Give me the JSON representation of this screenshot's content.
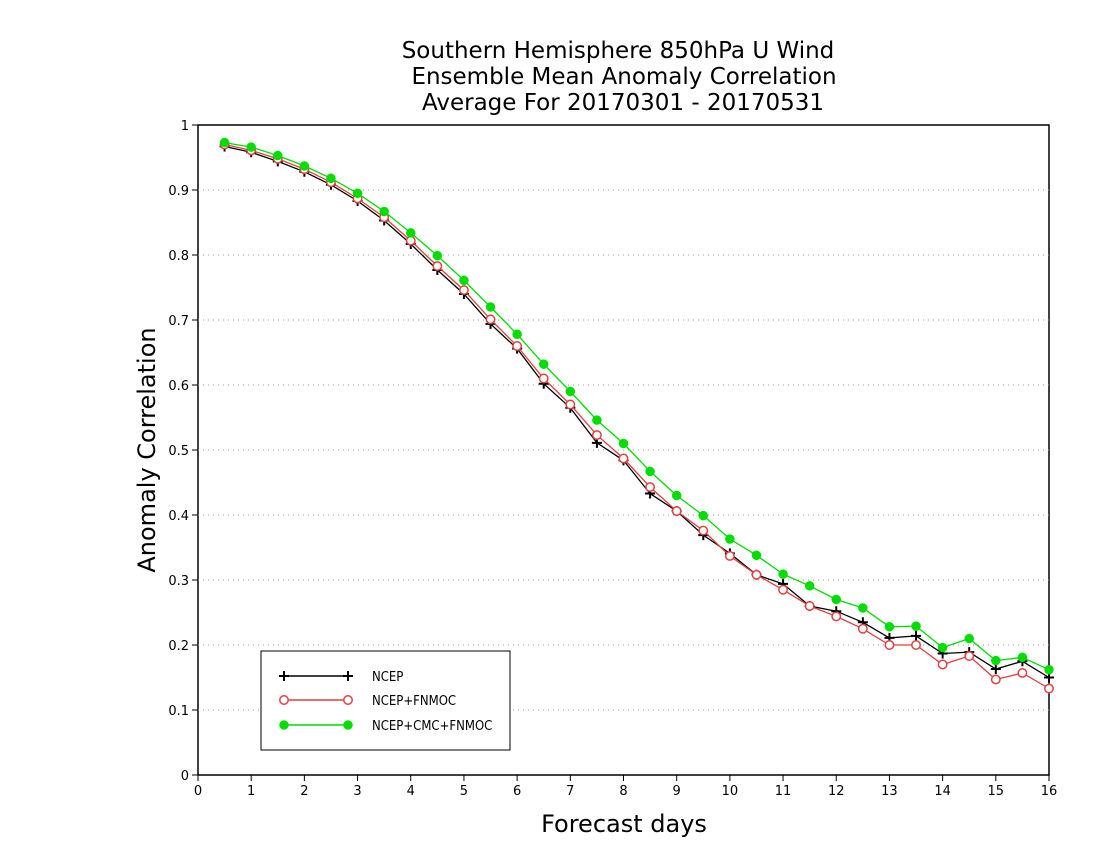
{
  "chart_data": {
    "type": "line",
    "title_lines": [
      "Southern Hemisphere 850hPa U Wind",
      "Ensemble Mean Anomaly Correlation",
      "Average For 20170301 - 20170531"
    ],
    "xlabel": "Forecast days",
    "ylabel": "Anomaly Correlation",
    "xlim": [
      0,
      16
    ],
    "ylim": [
      0,
      1
    ],
    "x_ticks": [
      "0",
      "1",
      "2",
      "3",
      "4",
      "5",
      "6",
      "7",
      "8",
      "9",
      "10",
      "11",
      "12",
      "13",
      "14",
      "15",
      "16"
    ],
    "y_ticks": [
      "0",
      "0.1",
      "0.2",
      "0.3",
      "0.4",
      "0.5",
      "0.6",
      "0.7",
      "0.8",
      "0.9",
      "1"
    ],
    "grid": "horizontal dotted",
    "legend_position": "bottom-left",
    "x": [
      0.5,
      1,
      1.5,
      2,
      2.5,
      3,
      3.5,
      4,
      4.5,
      5,
      5.5,
      6,
      6.5,
      7,
      7.5,
      8,
      8.5,
      9,
      9.5,
      10,
      10.5,
      11,
      11.5,
      12,
      12.5,
      13,
      13.5,
      14,
      14.5,
      15,
      15.5,
      16
    ],
    "series": [
      {
        "name": "NCEP",
        "color": "#000000",
        "marker": "plus",
        "values": [
          0.967,
          0.958,
          0.944,
          0.928,
          0.908,
          0.883,
          0.853,
          0.817,
          0.777,
          0.74,
          0.694,
          0.656,
          0.602,
          0.565,
          0.511,
          0.484,
          0.433,
          0.406,
          0.369,
          0.341,
          0.308,
          0.294,
          0.26,
          0.252,
          0.235,
          0.211,
          0.214,
          0.187,
          0.189,
          0.163,
          0.175,
          0.15
        ]
      },
      {
        "name": "NCEP+FNMOC",
        "color": "#e04040",
        "marker": "open-circle",
        "values": [
          0.97,
          0.961,
          0.948,
          0.932,
          0.912,
          0.887,
          0.858,
          0.822,
          0.783,
          0.746,
          0.701,
          0.66,
          0.61,
          0.57,
          0.523,
          0.487,
          0.443,
          0.406,
          0.376,
          0.337,
          0.308,
          0.285,
          0.26,
          0.244,
          0.225,
          0.2,
          0.2,
          0.17,
          0.183,
          0.147,
          0.157,
          0.133
        ]
      },
      {
        "name": "NCEP+CMC+FNMOC",
        "color": "#00dd00",
        "marker": "filled-circle",
        "values": [
          0.973,
          0.966,
          0.953,
          0.937,
          0.918,
          0.895,
          0.867,
          0.834,
          0.799,
          0.761,
          0.72,
          0.678,
          0.632,
          0.59,
          0.546,
          0.51,
          0.467,
          0.43,
          0.399,
          0.363,
          0.338,
          0.309,
          0.291,
          0.27,
          0.257,
          0.228,
          0.229,
          0.196,
          0.21,
          0.176,
          0.181,
          0.162
        ]
      }
    ]
  }
}
